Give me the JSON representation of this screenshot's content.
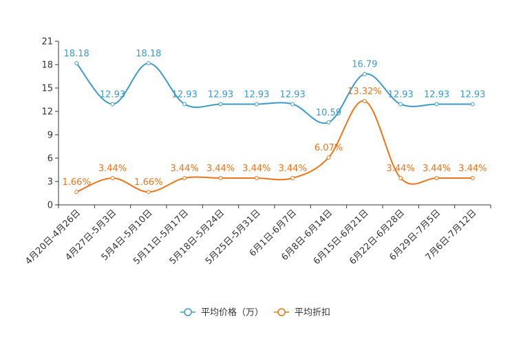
{
  "chart_data": {
    "type": "line",
    "title": "",
    "xlabel": "",
    "ylabel": "",
    "ylim": [
      0,
      21
    ],
    "yticks": [
      0,
      3,
      6,
      9,
      12,
      15,
      18,
      21
    ],
    "grid": false,
    "legend_position": "bottom-center",
    "categories": [
      "4月20日-4月26日",
      "4月27日-5月3日",
      "5月4日-5月10日",
      "5月11日-5月17日",
      "5月18日-5月24日",
      "5月25日-5月31日",
      "6月1日-6月7日",
      "6月8日-6月14日",
      "6月15日-6月21日",
      "6月22日-6月28日",
      "6月29日-7月5日",
      "7月6日-7月12日"
    ],
    "series": [
      {
        "name": "平均价格（万）",
        "color": "#3a9bcb",
        "values": [
          18.18,
          12.93,
          18.18,
          12.93,
          12.93,
          12.93,
          12.93,
          10.59,
          16.79,
          12.93,
          12.93,
          12.93
        ],
        "labels": [
          "18.18",
          "12.93",
          "18.18",
          "12.93",
          "12.93",
          "12.93",
          "12.93",
          "10.59",
          "16.79",
          "12.93",
          "12.93",
          "12.93"
        ]
      },
      {
        "name": "平均折扣",
        "color": "#f07417",
        "values": [
          1.66,
          3.44,
          1.66,
          3.44,
          3.44,
          3.44,
          3.44,
          6.07,
          13.32,
          3.44,
          3.44,
          3.44
        ],
        "labels": [
          "1.66%",
          "3.44%",
          "1.66%",
          "3.44%",
          "3.44%",
          "3.44%",
          "3.44%",
          "6.07%",
          "13.32%",
          "3.44%",
          "3.44%",
          "3.44%"
        ]
      }
    ]
  }
}
